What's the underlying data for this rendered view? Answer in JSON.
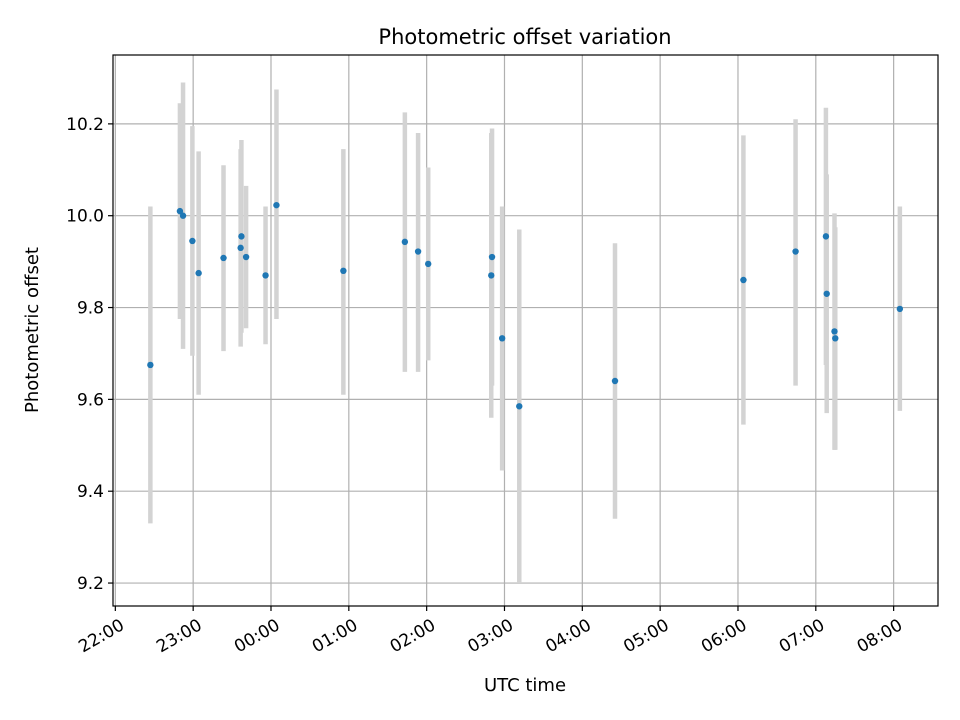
{
  "chart_data": {
    "type": "scatter",
    "title": "Photometric offset variation",
    "xlabel": "UTC time",
    "ylabel": "Photometric offset",
    "x_tick_labels": [
      "22:00",
      "23:00",
      "00:00",
      "01:00",
      "02:00",
      "03:00",
      "04:00",
      "05:00",
      "06:00",
      "07:00",
      "08:00"
    ],
    "y_tick_labels": [
      "9.2",
      "9.4",
      "9.6",
      "9.8",
      "10.0",
      "10.2"
    ],
    "y_ticks": [
      9.2,
      9.4,
      9.6,
      9.8,
      10.0,
      10.2
    ],
    "x_ticks_hours": [
      22,
      23,
      24,
      25,
      26,
      27,
      28,
      29,
      30,
      31,
      32
    ],
    "xlim_hours": [
      21.97,
      32.57
    ],
    "ylim": [
      9.15,
      10.35
    ],
    "grid": true,
    "colors": {
      "point": "#1f77b4",
      "errorbar": "#d3d3d3",
      "grid": "#b0b0b0",
      "axes": "#000000"
    },
    "points": [
      {
        "time": "22:27",
        "h": 22.45,
        "y": 9.675,
        "lo": 9.33,
        "hi": 10.02
      },
      {
        "time": "22:50",
        "h": 22.83,
        "y": 10.01,
        "lo": 9.775,
        "hi": 10.245
      },
      {
        "time": "22:52",
        "h": 22.87,
        "y": 10.0,
        "lo": 9.71,
        "hi": 10.29
      },
      {
        "time": "22:59",
        "h": 22.99,
        "y": 9.945,
        "lo": 9.695,
        "hi": 10.195
      },
      {
        "time": "23:04",
        "h": 23.07,
        "y": 9.875,
        "lo": 9.61,
        "hi": 10.14
      },
      {
        "time": "23:23",
        "h": 23.39,
        "y": 9.908,
        "lo": 9.705,
        "hi": 10.11
      },
      {
        "time": "23:37",
        "h": 23.62,
        "y": 9.955,
        "lo": 9.745,
        "hi": 10.165
      },
      {
        "time": "23:37",
        "h": 23.61,
        "y": 9.93,
        "lo": 9.715,
        "hi": 10.145
      },
      {
        "time": "23:41",
        "h": 23.68,
        "y": 9.91,
        "lo": 9.755,
        "hi": 10.065
      },
      {
        "time": "23:56",
        "h": 23.93,
        "y": 9.87,
        "lo": 9.72,
        "hi": 10.02
      },
      {
        "time": "00:04",
        "h": 24.07,
        "y": 10.023,
        "lo": 9.775,
        "hi": 10.275
      },
      {
        "time": "00:56",
        "h": 24.93,
        "y": 9.88,
        "lo": 9.61,
        "hi": 10.145
      },
      {
        "time": "01:43",
        "h": 25.72,
        "y": 9.943,
        "lo": 9.66,
        "hi": 10.225
      },
      {
        "time": "01:54",
        "h": 25.89,
        "y": 9.922,
        "lo": 9.66,
        "hi": 10.18
      },
      {
        "time": "02:01",
        "h": 26.02,
        "y": 9.895,
        "lo": 9.685,
        "hi": 10.105
      },
      {
        "time": "02:51",
        "h": 26.84,
        "y": 9.91,
        "lo": 9.63,
        "hi": 10.19
      },
      {
        "time": "02:51",
        "h": 26.83,
        "y": 9.87,
        "lo": 9.56,
        "hi": 10.18
      },
      {
        "time": "02:58",
        "h": 26.97,
        "y": 9.733,
        "lo": 9.445,
        "hi": 10.02
      },
      {
        "time": "03:11",
        "h": 27.19,
        "y": 9.585,
        "lo": 9.2,
        "hi": 9.97
      },
      {
        "time": "04:25",
        "h": 28.42,
        "y": 9.64,
        "lo": 9.34,
        "hi": 9.94
      },
      {
        "time": "06:04",
        "h": 30.07,
        "y": 9.86,
        "lo": 9.545,
        "hi": 10.175
      },
      {
        "time": "06:44",
        "h": 30.74,
        "y": 9.922,
        "lo": 9.63,
        "hi": 10.21
      },
      {
        "time": "07:07",
        "h": 31.13,
        "y": 9.955,
        "lo": 9.675,
        "hi": 10.235
      },
      {
        "time": "07:08",
        "h": 31.14,
        "y": 9.83,
        "lo": 9.57,
        "hi": 10.09
      },
      {
        "time": "07:14",
        "h": 31.24,
        "y": 9.748,
        "lo": 9.49,
        "hi": 10.005
      },
      {
        "time": "07:14",
        "h": 31.25,
        "y": 9.733,
        "lo": 9.49,
        "hi": 9.975
      },
      {
        "time": "08:04",
        "h": 32.08,
        "y": 9.797,
        "lo": 9.575,
        "hi": 10.02
      }
    ]
  }
}
